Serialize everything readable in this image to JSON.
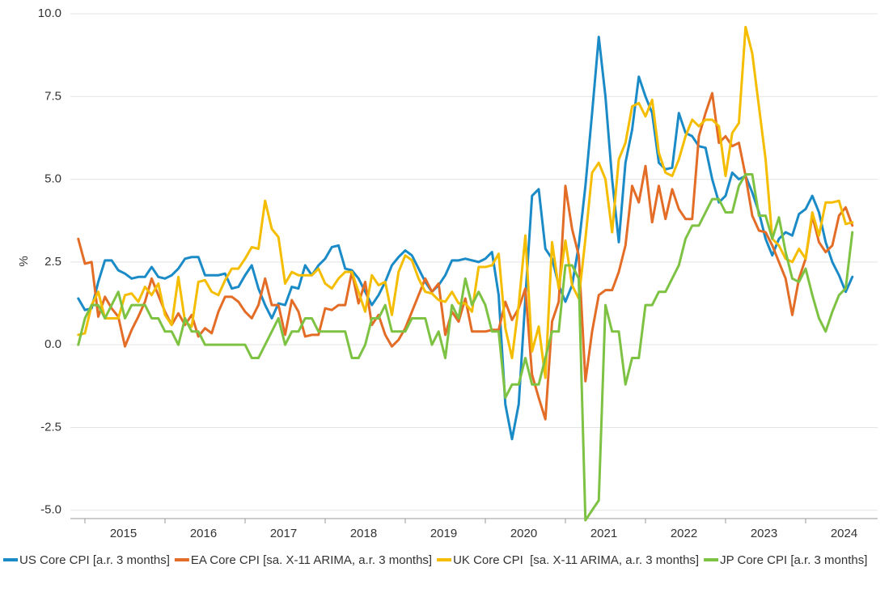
{
  "chart_data": {
    "type": "line",
    "y_label": "%",
    "ylim": [
      -5.25,
      10
    ],
    "yticks": [
      {
        "value": -5,
        "label": "-5.0"
      },
      -2.5,
      {
        "value": 0,
        "label": "0.0"
      },
      2.5,
      {
        "value": 5,
        "label": "5.0"
      },
      7.5,
      {
        "value": 10,
        "label": "10.0"
      }
    ],
    "grid": true,
    "legend": "bottom",
    "categories": [
      null,
      null,
      null,
      null,
      null,
      null,
      null,
      "2015",
      null,
      null,
      null,
      null,
      null,
      null,
      null,
      null,
      null,
      null,
      null,
      "2016",
      null,
      null,
      null,
      null,
      null,
      null,
      null,
      null,
      null,
      null,
      null,
      "2017",
      null,
      null,
      null,
      null,
      null,
      null,
      null,
      null,
      null,
      null,
      null,
      "2018",
      null,
      null,
      null,
      null,
      null,
      null,
      null,
      null,
      null,
      null,
      null,
      "2019",
      null,
      null,
      null,
      null,
      null,
      null,
      null,
      null,
      null,
      null,
      null,
      "2020",
      null,
      null,
      null,
      null,
      null,
      null,
      null,
      null,
      null,
      null,
      null,
      "2021",
      null,
      null,
      null,
      null,
      null,
      null,
      null,
      null,
      null,
      null,
      null,
      "2022",
      null,
      null,
      null,
      null,
      null,
      null,
      null,
      null,
      null,
      null,
      null,
      "2023",
      null,
      null,
      null,
      null,
      null,
      null,
      null,
      null,
      null,
      null,
      null,
      "2024",
      null
    ],
    "series": [
      {
        "name": "US Core CPI [a.r. 3 months]",
        "color": "#1a8bc7",
        "values": [
          1.4,
          1.05,
          1.1,
          1.9,
          2.55,
          2.55,
          2.25,
          2.15,
          2.0,
          2.05,
          2.05,
          2.35,
          2.05,
          2.0,
          2.1,
          2.3,
          2.6,
          2.65,
          2.65,
          2.1,
          2.1,
          2.1,
          2.15,
          1.7,
          1.75,
          2.1,
          2.4,
          1.7,
          1.2,
          0.8,
          1.25,
          1.2,
          1.75,
          1.7,
          2.4,
          2.1,
          2.4,
          2.6,
          2.95,
          3.0,
          2.3,
          2.25,
          2.0,
          1.6,
          1.2,
          1.5,
          1.9,
          2.4,
          2.65,
          2.85,
          2.7,
          2.3,
          1.9,
          1.6,
          1.8,
          2.1,
          2.55,
          2.55,
          2.6,
          2.55,
          2.5,
          2.6,
          2.8,
          1.5,
          -1.8,
          -2.85,
          -1.8,
          1.4,
          4.5,
          4.7,
          2.9,
          2.6,
          1.8,
          1.3,
          1.8,
          3.0,
          4.8,
          7.0,
          9.3,
          7.5,
          5.0,
          3.1,
          5.5,
          6.5,
          8.1,
          7.5,
          7.0,
          5.5,
          5.3,
          5.35,
          7.0,
          6.4,
          6.3,
          6.0,
          5.95,
          5.0,
          4.3,
          4.5,
          5.2,
          5.0,
          5.1,
          4.6,
          4.0,
          3.2,
          2.7,
          3.2,
          3.4,
          3.3,
          3.95,
          4.1,
          4.5,
          4.0,
          3.1,
          2.5,
          2.1,
          1.6,
          2.05
        ]
      },
      {
        "name": "EA Core CPI [sa. X-11 ARIMA, a.r. 3 months]",
        "color": "#e36c26",
        "values": [
          3.2,
          2.45,
          2.5,
          0.85,
          1.45,
          1.1,
          0.85,
          -0.05,
          0.45,
          0.85,
          1.3,
          2.0,
          1.5,
          1.0,
          0.6,
          0.95,
          0.6,
          0.9,
          0.25,
          0.5,
          0.35,
          1.0,
          1.45,
          1.45,
          1.3,
          1.0,
          0.8,
          1.2,
          2.0,
          1.2,
          1.2,
          0.3,
          1.35,
          1.0,
          0.25,
          0.3,
          0.3,
          1.1,
          1.05,
          1.2,
          1.2,
          2.2,
          1.25,
          1.9,
          0.6,
          0.9,
          0.3,
          -0.05,
          0.15,
          0.5,
          1.0,
          1.5,
          2.0,
          1.6,
          1.85,
          0.3,
          1.0,
          0.7,
          1.4,
          0.4,
          0.4,
          0.4,
          0.45,
          0.45,
          1.3,
          0.75,
          1.1,
          1.7,
          -0.9,
          -1.6,
          -2.25,
          0.7,
          1.3,
          4.8,
          3.5,
          2.7,
          -1.1,
          0.4,
          1.5,
          1.65,
          1.65,
          2.2,
          3.0,
          4.8,
          4.3,
          5.4,
          3.7,
          4.8,
          3.8,
          4.7,
          4.1,
          3.8,
          3.8,
          6.3,
          7.0,
          7.6,
          6.1,
          6.3,
          6.0,
          6.1,
          5.1,
          3.9,
          3.45,
          3.4,
          3.0,
          2.5,
          2.0,
          0.9,
          2.0,
          2.6,
          3.9,
          3.1,
          2.8,
          3.0,
          3.9,
          4.15,
          3.6
        ]
      },
      {
        "name": "UK Core CPI  [sa. X-11 ARIMA, a.r. 3 months]",
        "color": "#f5bd00",
        "values": [
          0.3,
          0.35,
          1.2,
          1.6,
          0.8,
          0.8,
          0.8,
          1.5,
          1.55,
          1.3,
          1.75,
          1.5,
          1.85,
          0.9,
          0.6,
          2.05,
          0.7,
          0.55,
          1.9,
          1.95,
          1.6,
          1.5,
          1.95,
          2.3,
          2.3,
          2.6,
          2.95,
          2.9,
          4.35,
          3.5,
          3.25,
          1.85,
          2.2,
          2.1,
          2.1,
          2.1,
          2.3,
          1.85,
          1.7,
          2.0,
          2.2,
          2.2,
          1.6,
          1.0,
          2.1,
          1.8,
          1.9,
          0.9,
          2.2,
          2.7,
          2.55,
          2.0,
          1.6,
          1.55,
          1.35,
          1.3,
          1.6,
          1.25,
          1.25,
          1.0,
          2.35,
          2.35,
          2.4,
          2.75,
          0.5,
          -0.4,
          1.2,
          3.3,
          -0.2,
          0.55,
          -1.0,
          3.1,
          1.7,
          3.15,
          1.8,
          1.4,
          3.2,
          5.2,
          5.5,
          5.0,
          3.4,
          5.6,
          6.1,
          7.2,
          7.3,
          6.9,
          7.4,
          5.8,
          5.2,
          5.1,
          5.6,
          6.3,
          6.8,
          6.6,
          6.8,
          6.8,
          6.6,
          5.1,
          6.4,
          6.7,
          9.6,
          8.8,
          7.2,
          5.6,
          3.2,
          3.0,
          2.6,
          2.5,
          2.9,
          2.6,
          4.0,
          3.3,
          4.3,
          4.3,
          4.35,
          3.65,
          3.7
        ]
      },
      {
        "name": "JP Core CPI [a.r. 3 months]",
        "color": "#7dc242",
        "values": [
          0.0,
          0.8,
          1.2,
          1.2,
          0.8,
          1.2,
          1.6,
          0.8,
          1.2,
          1.2,
          1.2,
          0.8,
          0.8,
          0.4,
          0.4,
          0.0,
          0.8,
          0.4,
          0.4,
          0.0,
          0.0,
          0.0,
          0.0,
          0.0,
          0.0,
          0.0,
          -0.4,
          -0.4,
          0.0,
          0.4,
          0.8,
          0.0,
          0.4,
          0.4,
          0.8,
          0.8,
          0.4,
          0.4,
          0.4,
          0.4,
          0.4,
          -0.4,
          -0.4,
          0.0,
          0.8,
          0.8,
          1.2,
          0.4,
          0.4,
          0.4,
          0.8,
          0.8,
          0.8,
          0.0,
          0.4,
          -0.4,
          1.2,
          0.8,
          2.0,
          1.2,
          1.6,
          1.2,
          0.4,
          0.4,
          -1.6,
          -1.2,
          -1.2,
          -0.4,
          -1.2,
          -1.2,
          -0.4,
          0.4,
          0.4,
          2.4,
          2.4,
          2.0,
          -5.3,
          -5.0,
          -4.7,
          1.2,
          0.4,
          0.4,
          -1.2,
          -0.4,
          -0.4,
          1.2,
          1.2,
          1.6,
          1.6,
          2.0,
          2.4,
          3.2,
          3.6,
          3.6,
          4.0,
          4.4,
          4.4,
          4.0,
          4.0,
          4.8,
          5.15,
          5.15,
          3.9,
          3.9,
          3.2,
          3.85,
          2.8,
          2.0,
          1.9,
          2.3,
          1.5,
          0.8,
          0.4,
          1.0,
          1.5,
          1.7,
          3.4
        ]
      }
    ]
  }
}
